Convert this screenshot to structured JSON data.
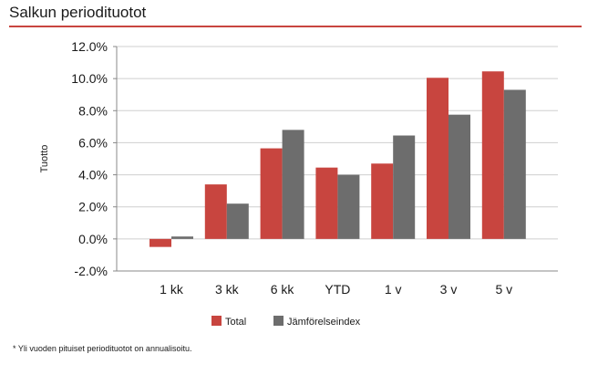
{
  "page": {
    "title": "Salkun periodituotot",
    "footnote": "* Yli vuoden pituiset periodituotot on annualisoitu."
  },
  "chart_data": {
    "type": "bar",
    "ylabel": "Tuotto",
    "xlabel": "",
    "categories": [
      "1 kk",
      "3 kk",
      "6 kk",
      "YTD",
      "1 v",
      "3 v",
      "5 v"
    ],
    "series": [
      {
        "name": "Total",
        "color": "#c8453f",
        "values": [
          -0.5,
          3.4,
          5.65,
          4.45,
          4.7,
          10.05,
          10.45
        ]
      },
      {
        "name": "Jämförelseindex",
        "color": "#6d6d6d",
        "values": [
          0.15,
          2.2,
          6.8,
          4.0,
          6.45,
          7.75,
          9.3
        ]
      }
    ],
    "ylim": [
      -2,
      12
    ],
    "yticks": [
      "-2.0%",
      "0.0%",
      "2.0%",
      "4.0%",
      "6.0%",
      "8.0%",
      "10.0%",
      "12.0%"
    ],
    "grid": true,
    "legend": "bottom"
  }
}
